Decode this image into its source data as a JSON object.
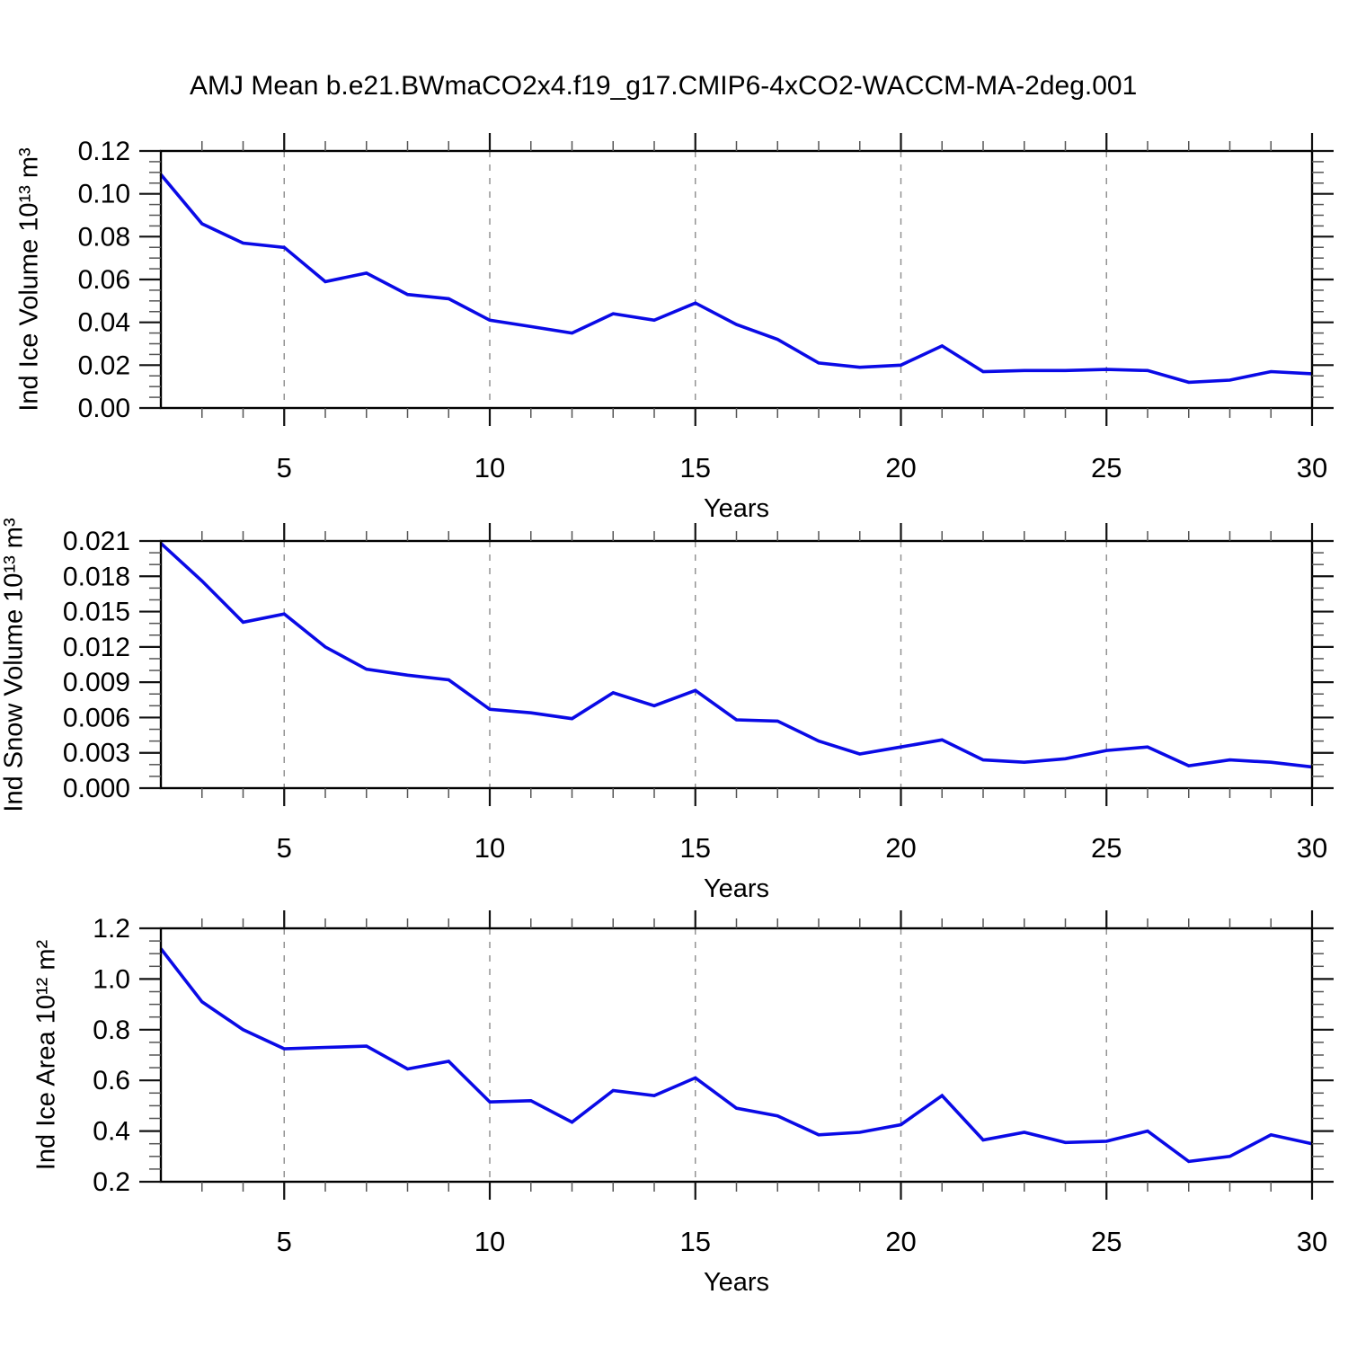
{
  "figure": {
    "title": "AMJ Mean b.e21.BWmaCO2x4.f19_g17.CMIP6-4xCO2-WACCM-MA-2deg.001"
  },
  "chart_data": [
    {
      "type": "line",
      "ylabel": "Ind Ice Volume 10¹³ m³",
      "xlabel": "Years",
      "line_color": "#0A0AE6",
      "grid_color": "#8c8c8c",
      "grid_x": [
        5,
        10,
        15,
        20,
        25
      ],
      "xlim": [
        2,
        30
      ],
      "ylim": [
        0,
        0.12
      ],
      "xticks": [
        5,
        10,
        15,
        20,
        25,
        30
      ],
      "xtick_labels": [
        "5",
        "10",
        "15",
        "20",
        "25",
        "30"
      ],
      "xminor_step": 1,
      "yticks": [
        0,
        0.02,
        0.04,
        0.06,
        0.08,
        0.1,
        0.12
      ],
      "ytick_labels": [
        "0.00",
        "0.02",
        "0.04",
        "0.06",
        "0.08",
        "0.10",
        "0.12"
      ],
      "yminor_step": 0.005,
      "x": [
        2,
        3,
        4,
        5,
        6,
        7,
        8,
        9,
        10,
        11,
        12,
        13,
        14,
        15,
        16,
        17,
        18,
        19,
        20,
        21,
        22,
        23,
        24,
        25,
        26,
        27,
        28,
        29,
        30
      ],
      "values": [
        0.109,
        0.086,
        0.077,
        0.075,
        0.059,
        0.063,
        0.053,
        0.051,
        0.041,
        0.038,
        0.035,
        0.044,
        0.041,
        0.049,
        0.039,
        0.032,
        0.021,
        0.019,
        0.02,
        0.029,
        0.017,
        0.0175,
        0.0175,
        0.018,
        0.0175,
        0.012,
        0.013,
        0.017,
        0.016
      ]
    },
    {
      "type": "line",
      "ylabel": "Ind Snow Volume 10¹³ m³",
      "xlabel": "Years",
      "line_color": "#0A0AE6",
      "grid_color": "#8c8c8c",
      "grid_x": [
        5,
        10,
        15,
        20,
        25
      ],
      "xlim": [
        2,
        30
      ],
      "ylim": [
        0,
        0.021
      ],
      "xticks": [
        5,
        10,
        15,
        20,
        25,
        30
      ],
      "xtick_labels": [
        "5",
        "10",
        "15",
        "20",
        "25",
        "30"
      ],
      "xminor_step": 1,
      "yticks": [
        0,
        0.003,
        0.006,
        0.009,
        0.012,
        0.015,
        0.018,
        0.021
      ],
      "ytick_labels": [
        "0.000",
        "0.003",
        "0.006",
        "0.009",
        "0.012",
        "0.015",
        "0.018",
        "0.021"
      ],
      "yminor_step": 0.001,
      "x": [
        2,
        3,
        4,
        5,
        6,
        7,
        8,
        9,
        10,
        11,
        12,
        13,
        14,
        15,
        16,
        17,
        18,
        19,
        20,
        21,
        22,
        23,
        24,
        25,
        26,
        27,
        28,
        29,
        30
      ],
      "values": [
        0.0208,
        0.0176,
        0.0141,
        0.0148,
        0.012,
        0.0101,
        0.0096,
        0.0092,
        0.0067,
        0.0064,
        0.0059,
        0.0081,
        0.007,
        0.0083,
        0.0058,
        0.0057,
        0.004,
        0.0029,
        0.0035,
        0.0041,
        0.0024,
        0.0022,
        0.0025,
        0.0032,
        0.0035,
        0.0019,
        0.0024,
        0.0022,
        0.0018
      ]
    },
    {
      "type": "line",
      "ylabel": "Ind Ice Area 10¹² m²",
      "xlabel": "Years",
      "line_color": "#0A0AE6",
      "grid_color": "#8c8c8c",
      "grid_x": [
        5,
        10,
        15,
        20,
        25
      ],
      "xlim": [
        2,
        30
      ],
      "ylim": [
        0.2,
        1.2
      ],
      "xticks": [
        5,
        10,
        15,
        20,
        25,
        30
      ],
      "xtick_labels": [
        "5",
        "10",
        "15",
        "20",
        "25",
        "30"
      ],
      "xminor_step": 1,
      "yticks": [
        0.2,
        0.4,
        0.6,
        0.8,
        1.0,
        1.2
      ],
      "ytick_labels": [
        "0.2",
        "0.4",
        "0.6",
        "0.8",
        "1.0",
        "1.2"
      ],
      "yminor_step": 0.05,
      "x": [
        2,
        3,
        4,
        5,
        6,
        7,
        8,
        9,
        10,
        11,
        12,
        13,
        14,
        15,
        16,
        17,
        18,
        19,
        20,
        21,
        22,
        23,
        24,
        25,
        26,
        27,
        28,
        29,
        30
      ],
      "values": [
        1.12,
        0.91,
        0.8,
        0.725,
        0.73,
        0.735,
        0.645,
        0.675,
        0.515,
        0.52,
        0.435,
        0.56,
        0.54,
        0.61,
        0.49,
        0.46,
        0.385,
        0.395,
        0.425,
        0.54,
        0.365,
        0.395,
        0.355,
        0.36,
        0.4,
        0.28,
        0.3,
        0.385,
        0.35
      ]
    }
  ]
}
